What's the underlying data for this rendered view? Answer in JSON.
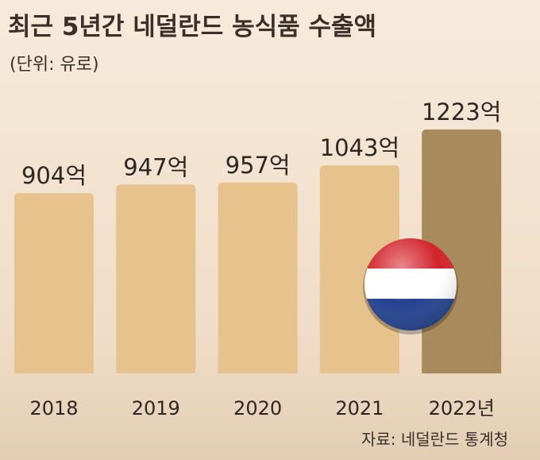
{
  "chart_data": {
    "type": "bar",
    "title": "최근 5년간 네덜란드 농식품 수출액",
    "subtitle": "(단위: 유로)",
    "categories": [
      "2018",
      "2019",
      "2020",
      "2021",
      "2022년"
    ],
    "values": [
      904,
      947,
      957,
      1043,
      1223
    ],
    "value_labels": [
      "904억",
      "947억",
      "957억",
      "1043억",
      "1223억"
    ],
    "colors": [
      "#e6c28c",
      "#e6c28c",
      "#e6c28c",
      "#e6c28c",
      "#a88b5c"
    ],
    "source": "자료: 네덜란드 통계청"
  }
}
